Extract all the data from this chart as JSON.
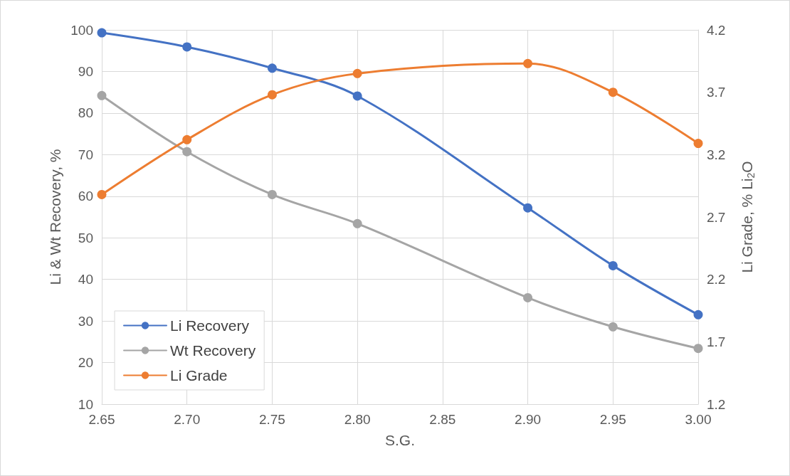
{
  "chart_data": {
    "type": "line",
    "xlabel": "S.G.",
    "ylabel": "Li & Wt Recovery, %",
    "y2label": "Li Grade, % Li$_{2}$O",
    "x": [
      2.65,
      2.7,
      2.75,
      2.8,
      2.9,
      2.95,
      3.0
    ],
    "series": [
      {
        "name": "Li Recovery",
        "color": "#4472c4",
        "values": [
          99.3,
          95.9,
          90.8,
          84.1,
          57.2,
          43.3,
          31.5
        ]
      },
      {
        "name": "Wt Recovery",
        "color": "#a5a5a5",
        "values": [
          84.2,
          70.7,
          60.4,
          53.4,
          35.6,
          28.6,
          23.4
        ]
      },
      {
        "name": "Li Grade",
        "color": "#ed7d31",
        "axis": "y2",
        "values": [
          2.88,
          3.32,
          3.68,
          3.85,
          3.93,
          3.7,
          3.29
        ]
      }
    ],
    "xlim": [
      2.65,
      3.0
    ],
    "xticks": [
      2.65,
      {
        "value": 2.7,
        "label": "2.70"
      },
      2.75,
      {
        "value": 2.8,
        "label": "2.80"
      },
      2.85,
      {
        "value": 2.9,
        "label": "2.90"
      },
      2.95,
      {
        "value": 3.0,
        "label": "3.00"
      }
    ],
    "ylim": [
      10,
      100
    ],
    "yticks": [
      10,
      20,
      30,
      40,
      50,
      60,
      70,
      80,
      90,
      100
    ],
    "y2lim": [
      1.2,
      4.2
    ],
    "y2ticks": [
      1.2,
      1.7,
      2.2,
      2.7,
      3.2,
      3.7,
      4.2
    ],
    "grid": true,
    "legend": "bottom left",
    "marker": "circle",
    "line_style": "solid"
  }
}
